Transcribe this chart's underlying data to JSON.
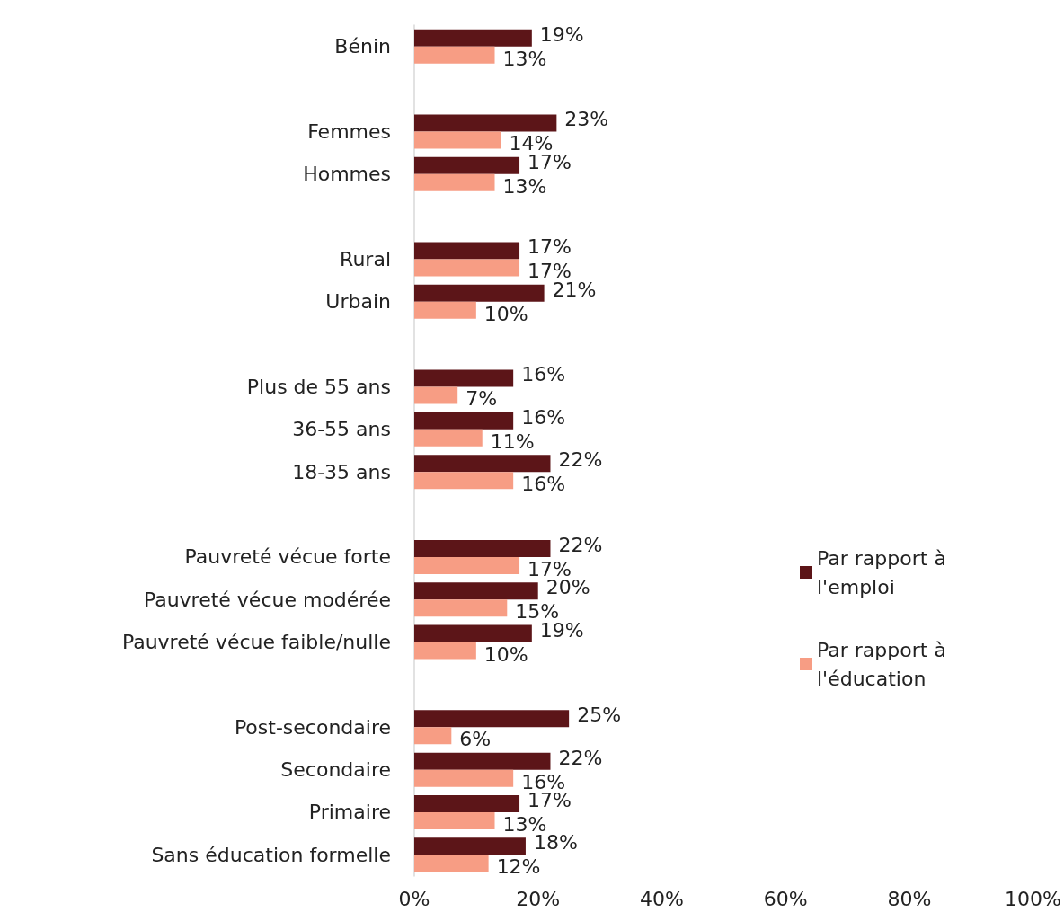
{
  "chart_data": {
    "type": "bar",
    "orientation": "horizontal",
    "legend": "right",
    "grid": false,
    "categories": [
      "Bénin",
      null,
      "Femmes",
      "Hommes",
      null,
      "Rural",
      "Urbain",
      null,
      "Plus de 55 ans",
      "36-55 ans",
      "18-35 ans",
      null,
      "Pauvreté vécue forte",
      "Pauvreté vécue modérée",
      "Pauvreté vécue faible/nulle",
      null,
      "Post-secondaire",
      "Secondaire",
      "Primaire",
      "Sans éducation formelle"
    ],
    "xlim": [
      0,
      100
    ],
    "xticks": [
      {
        "value": 0,
        "label": "0%"
      },
      {
        "value": 20,
        "label": "20%"
      },
      {
        "value": 40,
        "label": "40%"
      },
      {
        "value": 60,
        "label": "60%"
      },
      {
        "value": 80,
        "label": "80%"
      },
      {
        "value": 100,
        "label": "100%"
      }
    ],
    "series": [
      {
        "name": "Par rapport à l'emploi",
        "color": "#5c1518",
        "values": [
          19,
          null,
          23,
          17,
          null,
          17,
          21,
          null,
          16,
          16,
          22,
          null,
          22,
          20,
          19,
          null,
          25,
          22,
          17,
          18
        ],
        "value_labels": [
          "19%",
          null,
          "23%",
          "17%",
          null,
          "17%",
          "21%",
          null,
          "16%",
          "16%",
          "22%",
          null,
          "22%",
          "20%",
          "19%",
          null,
          "25%",
          "22%",
          "17%",
          "18%"
        ]
      },
      {
        "name": "Par rapport à l'éducation",
        "color": "#f79d84",
        "values": [
          13,
          null,
          14,
          13,
          null,
          17,
          10,
          null,
          7,
          11,
          16,
          null,
          17,
          15,
          10,
          null,
          6,
          16,
          13,
          12
        ],
        "value_labels": [
          "13%",
          null,
          "14%",
          "13%",
          null,
          "17%",
          "10%",
          null,
          "7%",
          "11%",
          "16%",
          null,
          "17%",
          "15%",
          "10%",
          null,
          "6%",
          "16%",
          "13%",
          "12%"
        ]
      }
    ]
  }
}
